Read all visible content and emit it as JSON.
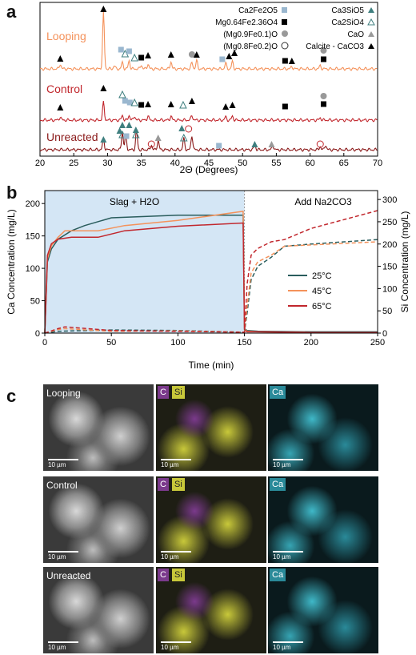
{
  "panels": {
    "a": "a",
    "b": "b",
    "c": "c"
  },
  "xrd": {
    "xlabel": "2Θ (Degrees)",
    "xticks": [
      "20",
      "25",
      "30",
      "35",
      "40",
      "45",
      "50",
      "55",
      "60",
      "65",
      "70"
    ],
    "traces": [
      {
        "name": "Looping",
        "color": "#f4925b"
      },
      {
        "name": "Control",
        "color": "#c1272d"
      },
      {
        "name": "Unreacted",
        "color": "#8b1a1a"
      }
    ],
    "legend": [
      {
        "label": "Ca2Fe2O5",
        "marker": "square",
        "color": "#9ab7cf"
      },
      {
        "label": "Mg0.64Fe2.36O4",
        "marker": "square",
        "color": "#000000"
      },
      {
        "label": "(Mg0.9Fe0.1)O",
        "marker": "circle",
        "color": "#999999"
      },
      {
        "label": "(Mg0.8Fe0.2)O",
        "marker": "circle-open",
        "color": "#333333"
      },
      {
        "label": "Ca3SiO5",
        "marker": "triangle",
        "color": "#3f7f7f"
      },
      {
        "label": "Ca2SiO4",
        "marker": "triangle-open",
        "color": "#3f7f7f"
      },
      {
        "label": "CaO",
        "marker": "triangle",
        "color": "#999999"
      },
      {
        "label": "Calcite - CaCO3",
        "marker": "triangle",
        "color": "#000000"
      }
    ]
  },
  "chart_data": {
    "type": "line",
    "xlabel": "Time (min)",
    "ylabel": "Ca Concentration (mg/L)",
    "y2label": "Si Concentration (mg/L)",
    "xlim": [
      0,
      250
    ],
    "ylim": [
      0,
      220
    ],
    "y2lim": [
      0,
      320
    ],
    "xticks": [
      0,
      50,
      100,
      150,
      200,
      250
    ],
    "yticks": [
      0,
      50,
      100,
      150,
      200
    ],
    "y2ticks": [
      0,
      50,
      100,
      150,
      200,
      250,
      300
    ],
    "regions": [
      {
        "label": "Slag + H2O",
        "x": [
          0,
          150
        ],
        "color": "#d4e6f5"
      },
      {
        "label": "Add Na2CO3",
        "x": [
          150,
          250
        ]
      }
    ],
    "series": [
      {
        "name": "25°C",
        "color": "#2a5d5d",
        "axis": "Ca",
        "x": [
          0,
          2,
          5,
          10,
          20,
          30,
          50,
          100,
          149,
          150,
          152,
          160,
          200,
          250
        ],
        "y": [
          0,
          110,
          130,
          145,
          158,
          166,
          178,
          182,
          182,
          7,
          4,
          3,
          2,
          2
        ]
      },
      {
        "name": "45°C",
        "color": "#f4925b",
        "axis": "Ca",
        "x": [
          0,
          2,
          5,
          10,
          15,
          40,
          60,
          100,
          149,
          150,
          152,
          160,
          200,
          250
        ],
        "y": [
          0,
          115,
          135,
          148,
          158,
          158,
          166,
          174,
          188,
          6,
          3,
          2,
          1,
          1
        ]
      },
      {
        "name": "65°C",
        "color": "#c1272d",
        "axis": "Ca",
        "x": [
          0,
          2,
          5,
          10,
          20,
          40,
          60,
          100,
          149,
          150,
          152,
          160,
          200,
          250
        ],
        "y": [
          0,
          120,
          138,
          145,
          148,
          148,
          158,
          165,
          170,
          5,
          2,
          2,
          1,
          1
        ]
      },
      {
        "name": "25°C Si",
        "color": "#2a5d5d",
        "axis": "Si",
        "dash": true,
        "x": [
          0,
          10,
          20,
          50,
          100,
          150,
          152,
          155,
          160,
          170,
          180,
          200,
          250
        ],
        "y": [
          0,
          4,
          5,
          7,
          6,
          2,
          45,
          120,
          150,
          170,
          195,
          200,
          210
        ]
      },
      {
        "name": "45°C Si",
        "color": "#f4925b",
        "axis": "Si",
        "dash": true,
        "x": [
          0,
          10,
          15,
          50,
          100,
          150,
          152,
          155,
          160,
          170,
          180,
          200,
          250
        ],
        "y": [
          0,
          8,
          10,
          4,
          5,
          2,
          60,
          135,
          160,
          175,
          195,
          198,
          205
        ]
      },
      {
        "name": "65°C Si",
        "color": "#c1272d",
        "axis": "Si",
        "dash": true,
        "x": [
          0,
          10,
          15,
          50,
          100,
          150,
          152,
          155,
          160,
          170,
          180,
          200,
          250
        ],
        "y": [
          0,
          10,
          14,
          6,
          4,
          2,
          110,
          175,
          190,
          205,
          210,
          235,
          275
        ]
      }
    ]
  },
  "micrographs": {
    "rows": [
      {
        "label": "Looping"
      },
      {
        "label": "Control"
      },
      {
        "label": "Unreacted"
      }
    ],
    "tags": {
      "c": "C",
      "si": "Si",
      "ca": "Ca"
    },
    "scalebar": "10 µm",
    "colors": {
      "c": "#7b3a8c",
      "si": "#c8c83a",
      "ca": "#2a8a99"
    }
  }
}
